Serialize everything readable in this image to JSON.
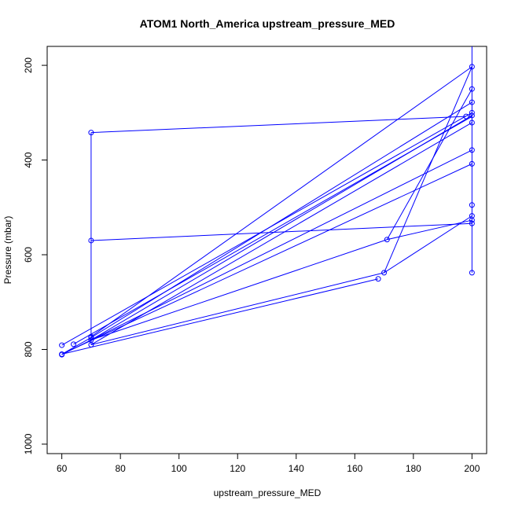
{
  "chart_data": {
    "type": "line",
    "title": "ATOM1 North_America upstream_pressure_MED",
    "xlabel": "upstream_pressure_MED",
    "ylabel": "Pressure (mbar)",
    "xlim": [
      55,
      205
    ],
    "ylim": [
      1020,
      160
    ],
    "y_axis_inverted": true,
    "x_ticks": [
      60,
      80,
      100,
      120,
      140,
      160,
      180,
      200
    ],
    "x_tick_labels": [
      "60",
      "80",
      "100",
      "120",
      "140",
      "160",
      "180",
      "200"
    ],
    "y_ticks": [
      200,
      400,
      600,
      800,
      1000
    ],
    "y_tick_labels": [
      "200",
      "400",
      "600",
      "800",
      "1000"
    ],
    "grid": false,
    "legend": "none",
    "colors": {
      "series": "#0000ff",
      "axis": "#000000"
    },
    "series": [
      {
        "marker": "open-circle",
        "points": [
          {
            "x": 70,
            "y": 342
          },
          {
            "x": 70,
            "y": 570
          },
          {
            "x": 70,
            "y": 773
          },
          {
            "x": 70,
            "y": 775
          },
          {
            "x": 70,
            "y": 780
          },
          {
            "x": 70,
            "y": 790
          },
          {
            "x": 60,
            "y": 791
          },
          {
            "x": 64,
            "y": 789
          },
          {
            "x": 60,
            "y": 810
          },
          {
            "x": 60,
            "y": 811
          },
          {
            "x": 168,
            "y": 651
          },
          {
            "x": 170,
            "y": 638
          },
          {
            "x": 171,
            "y": 568
          },
          {
            "x": 198,
            "y": 308
          },
          {
            "x": 200,
            "y": 203
          },
          {
            "x": 200,
            "y": 250
          },
          {
            "x": 200,
            "y": 278
          },
          {
            "x": 200,
            "y": 300
          },
          {
            "x": 200,
            "y": 306
          },
          {
            "x": 200,
            "y": 321
          },
          {
            "x": 200,
            "y": 379
          },
          {
            "x": 200,
            "y": 408
          },
          {
            "x": 200,
            "y": 495
          },
          {
            "x": 200,
            "y": 518
          },
          {
            "x": 200,
            "y": 527
          },
          {
            "x": 200,
            "y": 534
          },
          {
            "x": 200,
            "y": 638
          }
        ],
        "segments": [
          [
            [
              70,
              342
            ],
            [
              198,
              308
            ]
          ],
          [
            [
              70,
              570
            ],
            [
              200,
              534
            ]
          ],
          [
            [
              70,
              342
            ],
            [
              70,
              790
            ]
          ],
          [
            [
              200,
              120
            ],
            [
              200,
              638
            ]
          ],
          [
            [
              70,
              773
            ],
            [
              200,
              203
            ]
          ],
          [
            [
              70,
              775
            ],
            [
              200,
              278
            ]
          ],
          [
            [
              70,
              780
            ],
            [
              200,
              306
            ]
          ],
          [
            [
              70,
              790
            ],
            [
              200,
              321
            ]
          ],
          [
            [
              60,
              791
            ],
            [
              200,
              300
            ]
          ],
          [
            [
              60,
              810
            ],
            [
              200,
              408
            ]
          ],
          [
            [
              60,
              811
            ],
            [
              200,
              379
            ]
          ],
          [
            [
              64,
              789
            ],
            [
              200,
              308
            ]
          ],
          [
            [
              70,
              780
            ],
            [
              171,
              568
            ]
          ],
          [
            [
              60,
              810
            ],
            [
              168,
              651
            ]
          ],
          [
            [
              70,
              790
            ],
            [
              170,
              638
            ]
          ],
          [
            [
              171,
              568
            ],
            [
              200,
              527
            ]
          ],
          [
            [
              171,
              568
            ],
            [
              200,
              250
            ]
          ],
          [
            [
              170,
              638
            ],
            [
              200,
              518
            ]
          ],
          [
            [
              170,
              638
            ],
            [
              200,
              203
            ]
          ],
          [
            [
              60,
              810
            ],
            [
              70,
              775
            ]
          ]
        ]
      }
    ]
  }
}
